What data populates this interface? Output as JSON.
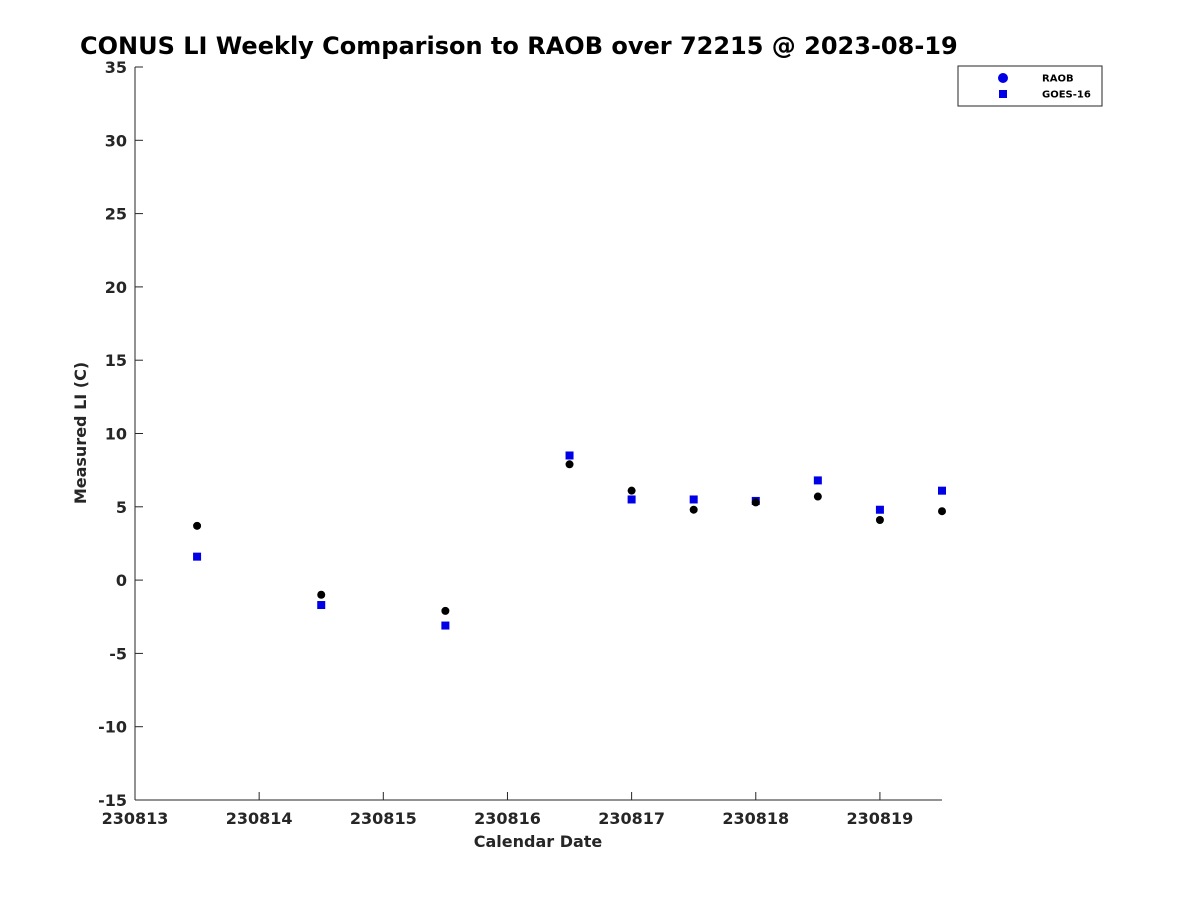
{
  "chart_data": {
    "type": "scatter",
    "title": "CONUS LI Weekly Comparison to RAOB over 72215 @ 2023-08-19",
    "xlabel": "Calendar Date",
    "ylabel": "Measured LI (C)",
    "xlim": [
      230813,
      230819.5
    ],
    "ylim": [
      -15,
      35
    ],
    "x_ticks": [
      230813,
      230814,
      230815,
      230816,
      230817,
      230818,
      230819
    ],
    "x_tick_labels": [
      "230813",
      "230814",
      "230815",
      "230816",
      "230817",
      "230818",
      "230819"
    ],
    "y_ticks": [
      -15,
      -10,
      -5,
      0,
      5,
      10,
      15,
      20,
      25,
      30,
      35
    ],
    "y_tick_labels": [
      "-15",
      "-10",
      "-5",
      "0",
      "5",
      "10",
      "15",
      "20",
      "25",
      "30",
      "35"
    ],
    "grid": false,
    "legend_position": "top-right",
    "series": [
      {
        "name": "RAOB",
        "marker": "circle",
        "color": "#000000",
        "legend_color": "#0000e6",
        "x": [
          230813.5,
          230814.5,
          230815.5,
          230816.5,
          230817,
          230817.5,
          230818,
          230818.5,
          230819,
          230819.5
        ],
        "y": [
          3.7,
          -1.0,
          -2.1,
          7.9,
          6.1,
          4.8,
          5.3,
          5.7,
          4.1,
          4.7
        ]
      },
      {
        "name": "GOES-16",
        "marker": "square",
        "color": "#0000e6",
        "legend_color": "#0000e6",
        "x": [
          230813.5,
          230814.5,
          230815.5,
          230816.5,
          230817,
          230817.5,
          230818,
          230818.5,
          230819,
          230819.5
        ],
        "y": [
          1.6,
          -1.7,
          -3.1,
          8.5,
          5.5,
          5.5,
          5.4,
          6.8,
          4.8,
          6.1
        ]
      }
    ]
  }
}
